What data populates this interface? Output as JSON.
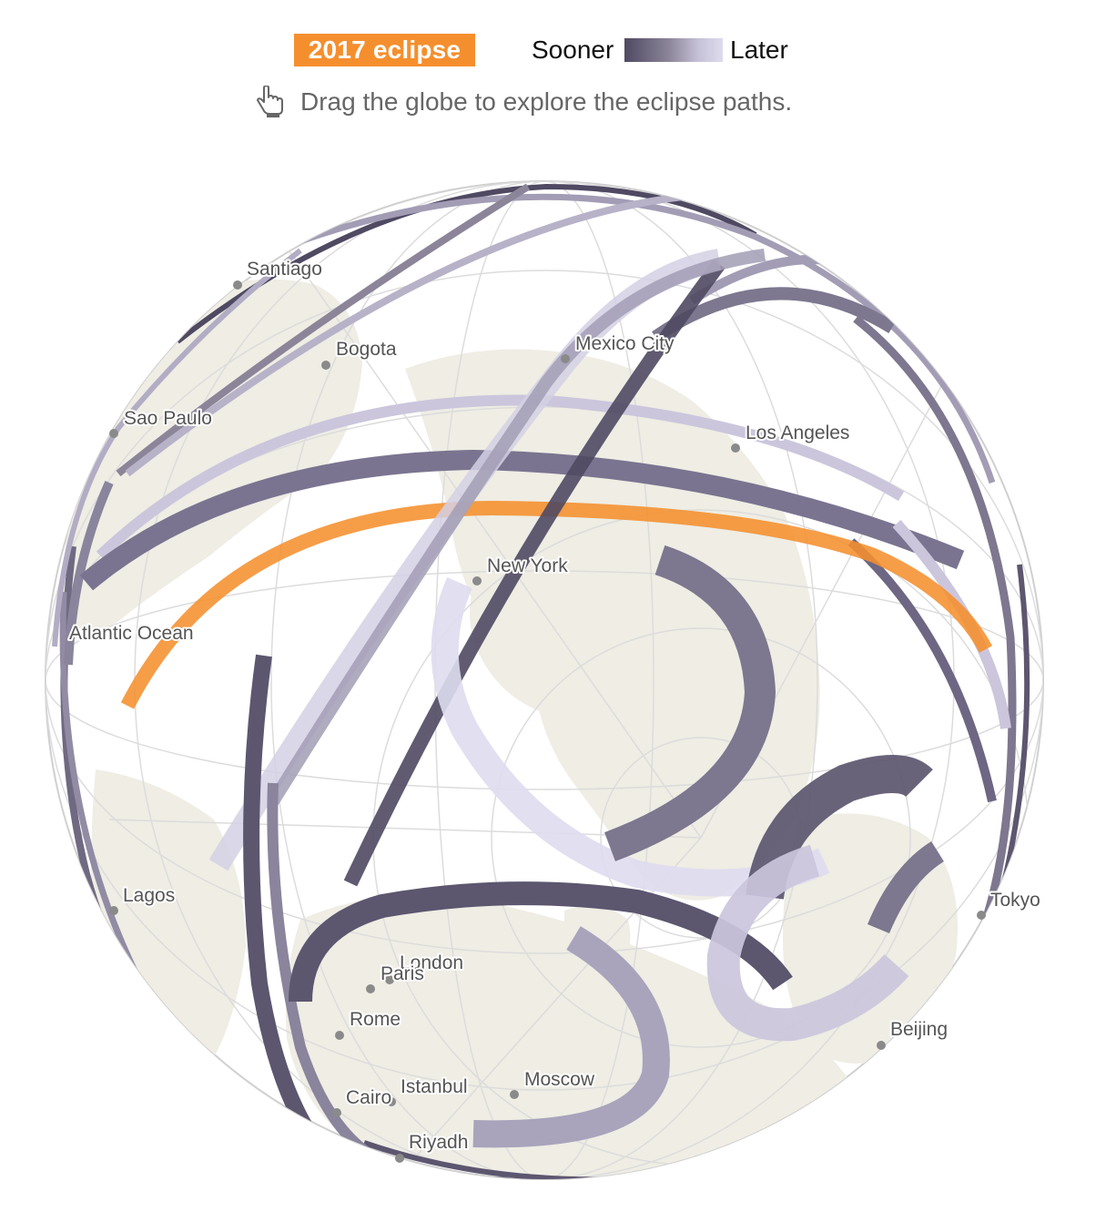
{
  "legend": {
    "badge": "2017 eclipse",
    "sooner": "Sooner",
    "later": "Later",
    "colors": {
      "eclipse_2017": "#f58f2e",
      "sooner": "#4f4962",
      "later": "#dedbee"
    }
  },
  "instruction": {
    "text": "Drag the globe to explore the eclipse paths.",
    "icon": "hand-pointer-icon"
  },
  "cities": [
    {
      "name": "Santiago"
    },
    {
      "name": "Bogota"
    },
    {
      "name": "Sao Paulo"
    },
    {
      "name": "Mexico City"
    },
    {
      "name": "Los Angeles"
    },
    {
      "name": "New York"
    },
    {
      "name": "Atlantic Ocean"
    },
    {
      "name": "Lagos"
    },
    {
      "name": "London"
    },
    {
      "name": "Paris"
    },
    {
      "name": "Rome"
    },
    {
      "name": "Istanbul"
    },
    {
      "name": "Cairo"
    },
    {
      "name": "Moscow"
    },
    {
      "name": "Riyadh"
    },
    {
      "name": "Tokyo"
    },
    {
      "name": "Beijing"
    }
  ]
}
